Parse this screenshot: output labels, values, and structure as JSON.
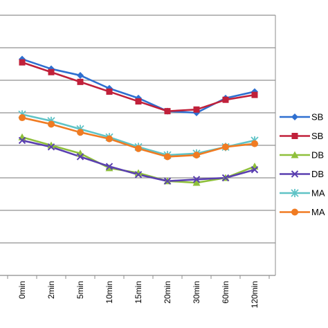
{
  "chart_data": {
    "type": "line",
    "categories": [
      "0min",
      "2min",
      "5min",
      "10min",
      "15min",
      "20min",
      "30min",
      "60min",
      "120min"
    ],
    "ylim": [
      0,
      8
    ],
    "grid": true,
    "legend_position": "right",
    "series": [
      {
        "name": "SB",
        "color": "#2e6fd0",
        "marker": "diamond",
        "values": [
          6.65,
          6.35,
          6.15,
          5.75,
          5.45,
          5.05,
          5.0,
          5.45,
          5.65
        ]
      },
      {
        "name": "SB",
        "color": "#c0203a",
        "marker": "square",
        "values": [
          6.55,
          6.25,
          5.95,
          5.65,
          5.35,
          5.05,
          5.1,
          5.4,
          5.55
        ]
      },
      {
        "name": "DB",
        "color": "#8fc03b",
        "marker": "triangle",
        "values": [
          4.25,
          4.0,
          3.75,
          3.3,
          3.15,
          2.9,
          2.85,
          3.0,
          3.35
        ]
      },
      {
        "name": "DB",
        "color": "#5a3fb0",
        "marker": "x",
        "values": [
          4.15,
          3.95,
          3.65,
          3.35,
          3.1,
          2.9,
          2.95,
          3.0,
          3.25
        ]
      },
      {
        "name": "MA",
        "color": "#5fc3c6",
        "marker": "star",
        "values": [
          4.95,
          4.75,
          4.5,
          4.25,
          3.95,
          3.7,
          3.75,
          3.95,
          4.15
        ]
      },
      {
        "name": "MA",
        "color": "#f07b22",
        "marker": "circle",
        "values": [
          4.85,
          4.65,
          4.4,
          4.2,
          3.9,
          3.65,
          3.7,
          3.95,
          4.05
        ]
      }
    ]
  }
}
